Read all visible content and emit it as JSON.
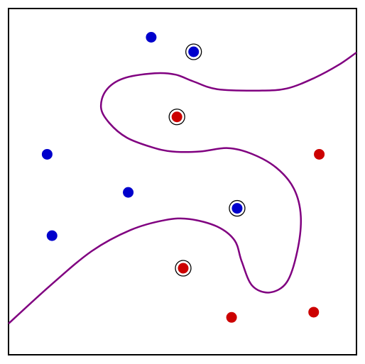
{
  "chart_data": {
    "type": "scatter",
    "title": "",
    "xlabel": "",
    "ylabel": "",
    "xlim": [
      0,
      1
    ],
    "ylim": [
      0,
      1
    ],
    "grid": false,
    "legend": "none",
    "axes_ticks": false,
    "colors": {
      "class_blue": "#0000cc",
      "class_red": "#cc0000",
      "boundary": "#800080",
      "frame": "#000000",
      "support_ring": "#000000"
    },
    "series": [
      {
        "class": "blue",
        "points": [
          {
            "x": 0.41,
            "y": 0.917,
            "support_vector": false
          },
          {
            "x": 0.532,
            "y": 0.875,
            "support_vector": true
          },
          {
            "x": 0.111,
            "y": 0.579,
            "support_vector": false
          },
          {
            "x": 0.344,
            "y": 0.469,
            "support_vector": false
          },
          {
            "x": 0.657,
            "y": 0.423,
            "support_vector": true
          },
          {
            "x": 0.125,
            "y": 0.344,
            "support_vector": false
          }
        ]
      },
      {
        "class": "red",
        "points": [
          {
            "x": 0.484,
            "y": 0.687,
            "support_vector": true
          },
          {
            "x": 0.893,
            "y": 0.579,
            "support_vector": false
          },
          {
            "x": 0.502,
            "y": 0.25,
            "support_vector": true
          },
          {
            "x": 0.641,
            "y": 0.108,
            "support_vector": false
          },
          {
            "x": 0.877,
            "y": 0.123,
            "support_vector": false
          }
        ]
      }
    ],
    "decision_boundary": [
      [
        1.0,
        0.873
      ],
      [
        0.95,
        0.838
      ],
      [
        0.88,
        0.8
      ],
      [
        0.8,
        0.769
      ],
      [
        0.72,
        0.763
      ],
      [
        0.6,
        0.767
      ],
      [
        0.53,
        0.79
      ],
      [
        0.48,
        0.809
      ],
      [
        0.42,
        0.813
      ],
      [
        0.33,
        0.798
      ],
      [
        0.28,
        0.763
      ],
      [
        0.266,
        0.713
      ],
      [
        0.29,
        0.669
      ],
      [
        0.34,
        0.627
      ],
      [
        0.41,
        0.6
      ],
      [
        0.47,
        0.587
      ],
      [
        0.55,
        0.587
      ],
      [
        0.63,
        0.597
      ],
      [
        0.7,
        0.58
      ],
      [
        0.77,
        0.54
      ],
      [
        0.82,
        0.48
      ],
      [
        0.84,
        0.4
      ],
      [
        0.83,
        0.3
      ],
      [
        0.8,
        0.21
      ],
      [
        0.75,
        0.18
      ],
      [
        0.7,
        0.2
      ],
      [
        0.67,
        0.27
      ],
      [
        0.65,
        0.33
      ],
      [
        0.6,
        0.37
      ],
      [
        0.52,
        0.392
      ],
      [
        0.45,
        0.389
      ],
      [
        0.35,
        0.36
      ],
      [
        0.24,
        0.3
      ],
      [
        0.12,
        0.2
      ],
      [
        0.0,
        0.09
      ]
    ]
  }
}
